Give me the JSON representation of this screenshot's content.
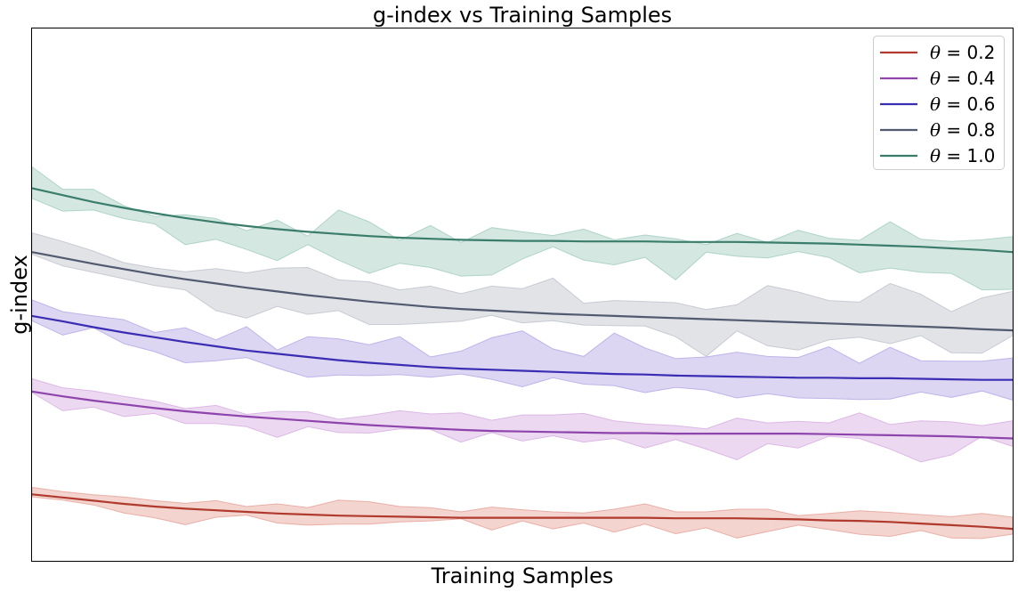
{
  "chart_data": {
    "type": "line",
    "title": "g-index vs Training Samples",
    "xlabel": "Training Samples",
    "ylabel": "g-index",
    "grid": false,
    "legend_position": "top-right",
    "xlim": [
      0,
      32
    ],
    "ylim": [
      0,
      100
    ],
    "ticks_visible": false,
    "series": [
      {
        "name": "θ = 0.2",
        "theta_symbol": "θ",
        "theta_value": "= 0.2",
        "color": "#b03a2e",
        "fill_color": "#e8a9a0",
        "x": [
          0,
          1,
          2,
          3,
          4,
          5,
          6,
          7,
          8,
          9,
          10,
          11,
          12,
          13,
          14,
          15,
          16,
          17,
          18,
          19,
          20,
          21,
          22,
          23,
          24,
          25,
          26,
          27,
          28,
          29,
          30,
          31,
          32
        ],
        "mean": [
          12.5,
          11.9,
          11.3,
          10.7,
          10.2,
          9.8,
          9.5,
          9.2,
          8.9,
          8.7,
          8.5,
          8.4,
          8.3,
          8.2,
          8.1,
          8.1,
          8.1,
          8.1,
          8.1,
          8.1,
          8.1,
          8.0,
          8.0,
          8.0,
          7.9,
          7.8,
          7.6,
          7.5,
          7.3,
          7.0,
          6.7,
          6.4,
          6.0
        ],
        "upper": [
          13.8,
          13.0,
          12.4,
          12.0,
          11.3,
          10.8,
          11.3,
          10.2,
          10.7,
          10.0,
          11.4,
          11.1,
          10.2,
          10.0,
          9.2,
          10.1,
          9.6,
          9.2,
          9.0,
          9.7,
          10.7,
          9.2,
          9.2,
          9.7,
          9.7,
          8.5,
          8.9,
          9.4,
          9.1,
          8.7,
          8.3,
          8.9,
          8.2
        ],
        "lower": [
          12.0,
          11.4,
          10.5,
          9.0,
          8.1,
          6.8,
          8.2,
          8.6,
          7.1,
          6.7,
          6.9,
          6.9,
          7.3,
          7.5,
          7.9,
          5.8,
          7.5,
          6.0,
          7.1,
          5.4,
          6.9,
          5.1,
          6.2,
          4.3,
          5.5,
          6.7,
          5.9,
          5.0,
          4.6,
          5.7,
          4.3,
          4.2,
          5.0
        ]
      },
      {
        "name": "θ = 0.4",
        "theta_symbol": "θ",
        "theta_value": "= 0.4",
        "color": "#8e44ad",
        "fill_color": "#d9b3e3",
        "x": [
          0,
          1,
          2,
          3,
          4,
          5,
          6,
          7,
          8,
          9,
          10,
          11,
          12,
          13,
          14,
          15,
          16,
          17,
          18,
          19,
          20,
          21,
          22,
          23,
          24,
          25,
          26,
          27,
          28,
          29,
          30,
          31,
          32
        ],
        "mean": [
          31.8,
          30.9,
          30.1,
          29.4,
          28.7,
          28.1,
          27.6,
          27.1,
          26.7,
          26.3,
          25.9,
          25.5,
          25.2,
          24.9,
          24.6,
          24.4,
          24.3,
          24.2,
          24.1,
          24.0,
          24.0,
          23.9,
          23.9,
          23.9,
          23.9,
          23.9,
          23.8,
          23.7,
          23.6,
          23.5,
          23.4,
          23.2,
          23.0
        ],
        "upper": [
          34.2,
          32.5,
          31.9,
          30.9,
          30.0,
          28.6,
          29.2,
          27.5,
          28.1,
          28.0,
          26.6,
          27.3,
          28.2,
          27.6,
          27.8,
          26.4,
          27.4,
          27.4,
          27.7,
          26.3,
          25.7,
          25.4,
          24.8,
          26.8,
          25.9,
          26.2,
          25.9,
          27.8,
          25.6,
          26.3,
          26.1,
          25.4,
          26.3
        ],
        "lower": [
          31.6,
          28.2,
          28.9,
          27.1,
          27.7,
          25.8,
          25.8,
          25.2,
          23.2,
          25.2,
          24.1,
          24.0,
          24.8,
          24.7,
          22.3,
          24.1,
          22.5,
          23.5,
          22.3,
          23.0,
          21.2,
          22.8,
          21.0,
          19.0,
          22.0,
          21.2,
          23.4,
          23.0,
          21.0,
          18.6,
          19.9,
          23.4,
          21.5
        ]
      },
      {
        "name": "θ = 0.6",
        "theta_symbol": "θ",
        "theta_value": "= 0.6",
        "color": "#3b2db3",
        "fill_color": "#b9aee8",
        "x": [
          0,
          1,
          2,
          3,
          4,
          5,
          6,
          7,
          8,
          9,
          10,
          11,
          12,
          13,
          14,
          15,
          16,
          17,
          18,
          19,
          20,
          21,
          22,
          23,
          24,
          25,
          26,
          27,
          28,
          29,
          30,
          31,
          32
        ],
        "mean": [
          46.0,
          45.0,
          43.9,
          42.9,
          42.0,
          41.1,
          40.3,
          39.5,
          38.9,
          38.3,
          37.7,
          37.2,
          36.8,
          36.4,
          36.1,
          35.9,
          35.7,
          35.5,
          35.3,
          35.1,
          35.0,
          34.8,
          34.7,
          34.6,
          34.5,
          34.4,
          34.4,
          34.3,
          34.3,
          34.2,
          34.1,
          34.0,
          34.0
        ],
        "upper": [
          49.0,
          46.8,
          46.0,
          45.3,
          42.9,
          43.8,
          41.5,
          44.0,
          39.6,
          42.1,
          41.7,
          40.6,
          42.1,
          38.3,
          39.4,
          41.9,
          43.2,
          39.8,
          38.4,
          42.8,
          40.0,
          38.0,
          38.3,
          39.2,
          38.4,
          38.2,
          40.2,
          37.1,
          40.1,
          37.6,
          37.5,
          37.5,
          38.1
        ],
        "lower": [
          45.1,
          42.4,
          43.8,
          40.8,
          39.3,
          37.2,
          37.6,
          38.2,
          36.2,
          34.5,
          34.9,
          34.8,
          35.0,
          34.5,
          35.1,
          34.1,
          32.7,
          34.4,
          33.2,
          32.9,
          31.6,
          32.6,
          32.1,
          30.6,
          31.4,
          30.6,
          30.5,
          30.3,
          30.4,
          31.7,
          30.7,
          31.9,
          30.2
        ]
      },
      {
        "name": "θ = 0.8",
        "theta_symbol": "θ",
        "theta_value": "= 0.8",
        "color": "#525a70",
        "fill_color": "#c4c7d0",
        "x": [
          0,
          1,
          2,
          3,
          4,
          5,
          6,
          7,
          8,
          9,
          10,
          11,
          12,
          13,
          14,
          15,
          16,
          17,
          18,
          19,
          20,
          21,
          22,
          23,
          24,
          25,
          26,
          27,
          28,
          29,
          30,
          31,
          32
        ],
        "mean": [
          58.0,
          56.9,
          55.8,
          54.8,
          53.8,
          52.9,
          52.1,
          51.3,
          50.6,
          49.9,
          49.3,
          48.7,
          48.2,
          47.7,
          47.3,
          47.0,
          46.7,
          46.4,
          46.2,
          46.0,
          45.8,
          45.6,
          45.4,
          45.2,
          45.0,
          44.8,
          44.6,
          44.4,
          44.2,
          44.0,
          43.8,
          43.5,
          43.3
        ],
        "upper": [
          61.6,
          60.0,
          58.2,
          56.0,
          55.0,
          54.3,
          54.9,
          54.1,
          55.0,
          55.1,
          52.8,
          52.4,
          50.9,
          51.6,
          50.2,
          51.6,
          51.1,
          53.1,
          48.4,
          48.9,
          48.7,
          48.5,
          47.2,
          48.1,
          51.7,
          50.5,
          48.9,
          48.6,
          52.1,
          50.1,
          46.8,
          49.4,
          50.6
        ],
        "lower": [
          57.6,
          55.4,
          54.2,
          53.0,
          51.7,
          50.9,
          47.0,
          45.6,
          47.8,
          46.3,
          47.0,
          44.4,
          44.4,
          44.7,
          45.0,
          46.1,
          44.7,
          45.1,
          44.3,
          44.2,
          44.1,
          42.1,
          38.4,
          43.2,
          40.4,
          39.6,
          41.5,
          42.0,
          40.8,
          42.3,
          39.1,
          39.0,
          42.3
        ]
      },
      {
        "name": "θ = 1.0",
        "theta_symbol": "θ",
        "theta_value": "= 1.0",
        "color": "#3a7d6a",
        "fill_color": "#a9d0c4",
        "x": [
          0,
          1,
          2,
          3,
          4,
          5,
          6,
          7,
          8,
          9,
          10,
          11,
          12,
          13,
          14,
          15,
          16,
          17,
          18,
          19,
          20,
          21,
          22,
          23,
          24,
          25,
          26,
          27,
          28,
          29,
          30,
          31,
          32
        ],
        "mean": [
          70.0,
          68.7,
          67.4,
          66.3,
          65.3,
          64.4,
          63.6,
          62.9,
          62.3,
          61.8,
          61.4,
          61.0,
          60.7,
          60.5,
          60.3,
          60.2,
          60.1,
          60.1,
          60.0,
          60.0,
          60.0,
          59.9,
          59.9,
          59.9,
          59.8,
          59.7,
          59.6,
          59.4,
          59.2,
          59.0,
          58.7,
          58.4,
          58.0
        ],
        "upper": [
          74.0,
          69.8,
          69.8,
          66.7,
          64.7,
          65.0,
          64.3,
          62.0,
          64.0,
          61.0,
          65.9,
          63.7,
          60.2,
          63.0,
          59.8,
          62.6,
          61.8,
          61.1,
          62.3,
          60.3,
          61.2,
          60.5,
          59.4,
          61.5,
          59.8,
          62.1,
          60.6,
          60.2,
          63.7,
          60.4,
          60.0,
          60.3,
          60.9
        ],
        "lower": [
          68.1,
          65.7,
          65.9,
          64.3,
          63.3,
          59.4,
          60.4,
          58.5,
          56.4,
          59.4,
          56.5,
          54.0,
          55.9,
          55.1,
          53.5,
          53.7,
          56.7,
          59.0,
          56.5,
          55.6,
          57.0,
          52.8,
          58.0,
          57.2,
          56.9,
          58.1,
          57.0,
          54.1,
          55.0,
          54.2,
          54.0,
          50.9,
          51.0
        ]
      }
    ]
  }
}
